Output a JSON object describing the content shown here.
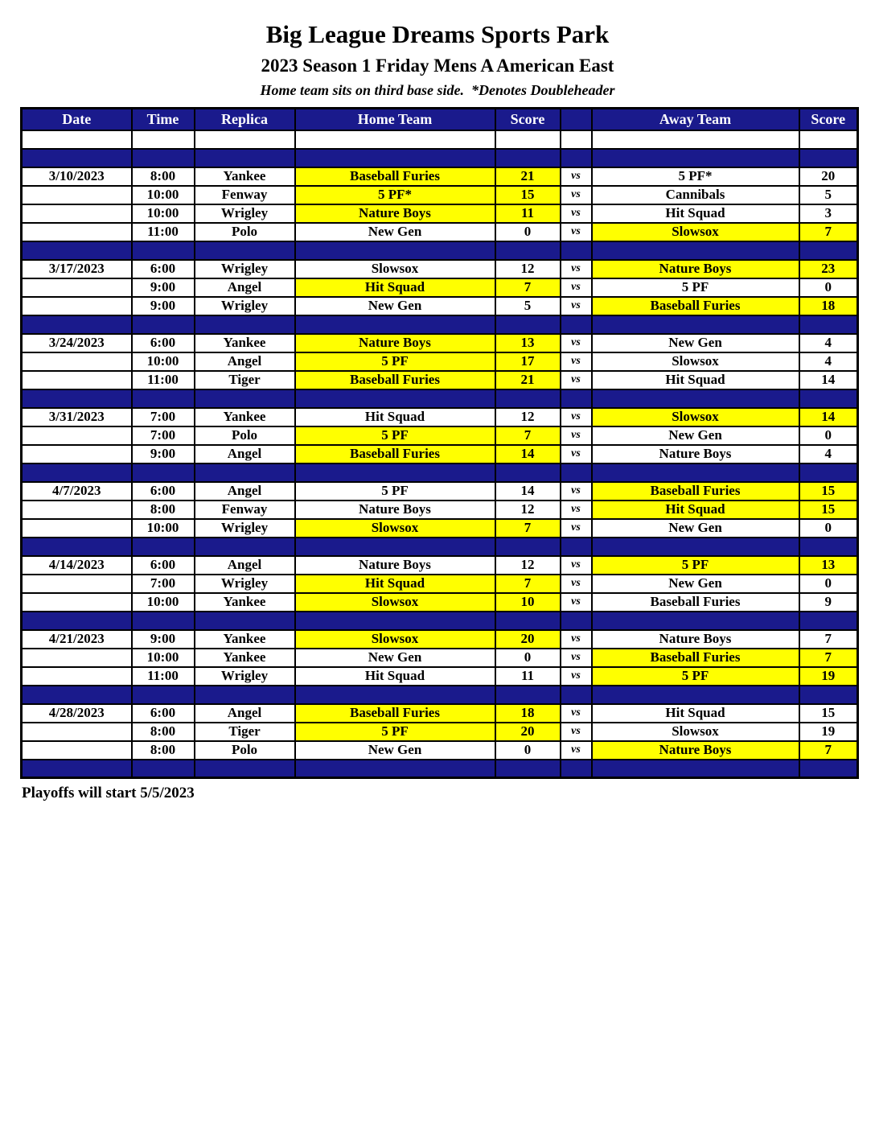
{
  "page": {
    "title": "Big League Dreams Sports Park",
    "subtitle": "2023 Season 1 Friday Mens A American East",
    "note": "Home team sits on third base side.  *Denotes Doubleheader",
    "footer": "Playoffs will start 5/5/2023"
  },
  "colors": {
    "navy": "#1a1a8c",
    "yellow": "#ffff00",
    "header_text": "#ffffff",
    "border": "#000000",
    "body_text": "#000000"
  },
  "table": {
    "columns": [
      "Date",
      "Time",
      "Replica",
      "Home Team",
      "Score",
      "",
      "Away Team",
      "Score"
    ],
    "vs_label": "vs",
    "blocks": [
      {
        "date": "3/10/2023",
        "games": [
          {
            "time": "8:00",
            "replica": "Yankee",
            "home": "Baseball Furies",
            "home_score": "21",
            "away": "5 PF*",
            "away_score": "20",
            "winner": "home"
          },
          {
            "time": "10:00",
            "replica": "Fenway",
            "home": "5 PF*",
            "home_score": "15",
            "away": "Cannibals",
            "away_score": "5",
            "winner": "home"
          },
          {
            "time": "10:00",
            "replica": "Wrigley",
            "home": "Nature Boys",
            "home_score": "11",
            "away": "Hit Squad",
            "away_score": "3",
            "winner": "home"
          },
          {
            "time": "11:00",
            "replica": "Polo",
            "home": "New Gen",
            "home_score": "0",
            "away": "Slowsox",
            "away_score": "7",
            "winner": "away"
          }
        ]
      },
      {
        "date": "3/17/2023",
        "games": [
          {
            "time": "6:00",
            "replica": "Wrigley",
            "home": "Slowsox",
            "home_score": "12",
            "away": "Nature Boys",
            "away_score": "23",
            "winner": "away"
          },
          {
            "time": "9:00",
            "replica": "Angel",
            "home": "Hit Squad",
            "home_score": "7",
            "away": "5 PF",
            "away_score": "0",
            "winner": "home"
          },
          {
            "time": "9:00",
            "replica": "Wrigley",
            "home": "New Gen",
            "home_score": "5",
            "away": "Baseball Furies",
            "away_score": "18",
            "winner": "away"
          }
        ]
      },
      {
        "date": "3/24/2023",
        "games": [
          {
            "time": "6:00",
            "replica": "Yankee",
            "home": "Nature Boys",
            "home_score": "13",
            "away": "New Gen",
            "away_score": "4",
            "winner": "home"
          },
          {
            "time": "10:00",
            "replica": "Angel",
            "home": "5 PF",
            "home_score": "17",
            "away": "Slowsox",
            "away_score": "4",
            "winner": "home"
          },
          {
            "time": "11:00",
            "replica": "Tiger",
            "home": "Baseball Furies",
            "home_score": "21",
            "away": "Hit Squad",
            "away_score": "14",
            "winner": "home"
          }
        ]
      },
      {
        "date": "3/31/2023",
        "games": [
          {
            "time": "7:00",
            "replica": "Yankee",
            "home": "Hit Squad",
            "home_score": "12",
            "away": "Slowsox",
            "away_score": "14",
            "winner": "away"
          },
          {
            "time": "7:00",
            "replica": "Polo",
            "home": "5 PF",
            "home_score": "7",
            "away": "New Gen",
            "away_score": "0",
            "winner": "home"
          },
          {
            "time": "9:00",
            "replica": "Angel",
            "home": "Baseball Furies",
            "home_score": "14",
            "away": "Nature Boys",
            "away_score": "4",
            "winner": "home"
          }
        ]
      },
      {
        "date": "4/7/2023",
        "games": [
          {
            "time": "6:00",
            "replica": "Angel",
            "home": "5 PF",
            "home_score": "14",
            "away": "Baseball Furies",
            "away_score": "15",
            "winner": "away"
          },
          {
            "time": "8:00",
            "replica": "Fenway",
            "home": "Nature Boys",
            "home_score": "12",
            "away": "Hit Squad",
            "away_score": "15",
            "winner": "away"
          },
          {
            "time": "10:00",
            "replica": "Wrigley",
            "home": "Slowsox",
            "home_score": "7",
            "away": "New Gen",
            "away_score": "0",
            "winner": "home"
          }
        ]
      },
      {
        "date": "4/14/2023",
        "games": [
          {
            "time": "6:00",
            "replica": "Angel",
            "home": "Nature Boys",
            "home_score": "12",
            "away": "5 PF",
            "away_score": "13",
            "winner": "away"
          },
          {
            "time": "7:00",
            "replica": "Wrigley",
            "home": "Hit Squad",
            "home_score": "7",
            "away": "New Gen",
            "away_score": "0",
            "winner": "home"
          },
          {
            "time": "10:00",
            "replica": "Yankee",
            "home": "Slowsox",
            "home_score": "10",
            "away": "Baseball Furies",
            "away_score": "9",
            "winner": "home"
          }
        ]
      },
      {
        "date": "4/21/2023",
        "games": [
          {
            "time": "9:00",
            "replica": "Yankee",
            "home": "Slowsox",
            "home_score": "20",
            "away": "Nature Boys",
            "away_score": "7",
            "winner": "home"
          },
          {
            "time": "10:00",
            "replica": "Yankee",
            "home": "New Gen",
            "home_score": "0",
            "away": "Baseball Furies",
            "away_score": "7",
            "winner": "away"
          },
          {
            "time": "11:00",
            "replica": "Wrigley",
            "home": "Hit Squad",
            "home_score": "11",
            "away": "5 PF",
            "away_score": "19",
            "winner": "away"
          }
        ]
      },
      {
        "date": "4/28/2023",
        "games": [
          {
            "time": "6:00",
            "replica": "Angel",
            "home": "Baseball Furies",
            "home_score": "18",
            "away": "Hit Squad",
            "away_score": "15",
            "winner": "home"
          },
          {
            "time": "8:00",
            "replica": "Tiger",
            "home": "5 PF",
            "home_score": "20",
            "away": "Slowsox",
            "away_score": "19",
            "winner": "home"
          },
          {
            "time": "8:00",
            "replica": "Polo",
            "home": "New Gen",
            "home_score": "0",
            "away": "Nature Boys",
            "away_score": "7",
            "winner": "away"
          }
        ]
      }
    ]
  }
}
